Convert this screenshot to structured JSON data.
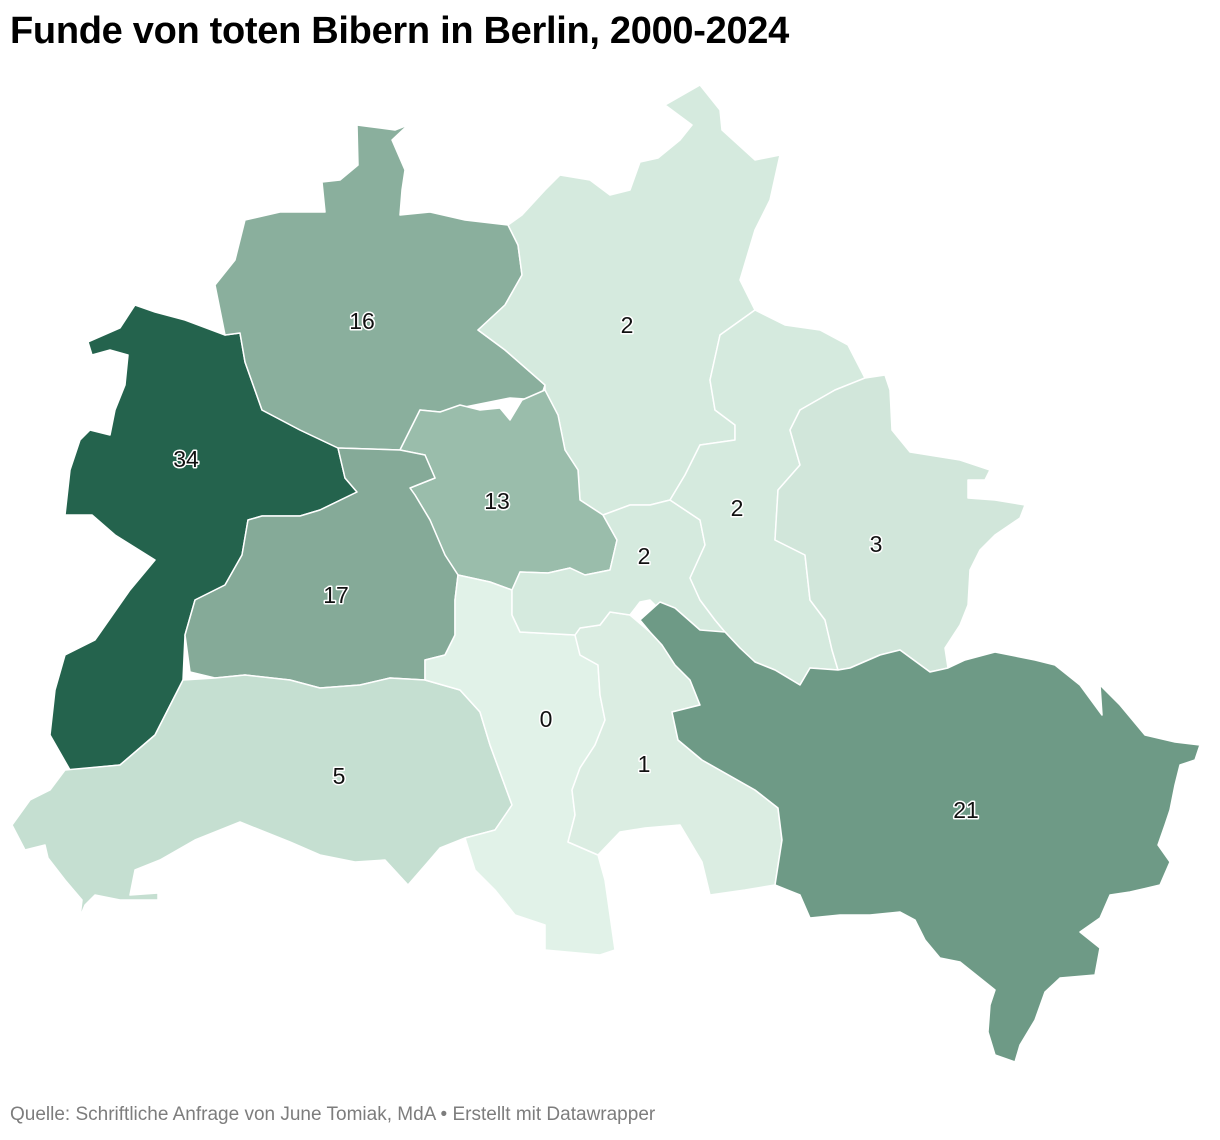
{
  "title": "Funde von toten Bibern in Berlin, 2000-2024",
  "footer": {
    "source": "Quelle: Schriftliche Anfrage von June Tomiak, MdA",
    "separator": "•",
    "credit": "Erstellt mit Datawrapper"
  },
  "map": {
    "regions": [
      {
        "id": "spandau",
        "value": 34,
        "label": "34",
        "color": "#24634d"
      },
      {
        "id": "reinickendorf",
        "value": 16,
        "label": "16",
        "color": "#8aaf9d"
      },
      {
        "id": "pankow",
        "value": 2,
        "label": "2",
        "color": "#d5eade"
      },
      {
        "id": "mitte",
        "value": 13,
        "label": "13",
        "color": "#9abdab"
      },
      {
        "id": "charlottenburg-wilmersdorf",
        "value": 17,
        "label": "17",
        "color": "#85aa98"
      },
      {
        "id": "steglitz-zehlendorf",
        "value": 5,
        "label": "5",
        "color": "#c5dfd1"
      },
      {
        "id": "tempelhof-schoeneberg",
        "value": 0,
        "label": "0",
        "color": "#e1f2e8"
      },
      {
        "id": "neukoelln",
        "value": 1,
        "label": "1",
        "color": "#dbede2"
      },
      {
        "id": "friedrichshain-kreuzberg",
        "value": 2,
        "label": "2",
        "color": "#d5eade"
      },
      {
        "id": "lichtenberg",
        "value": 2,
        "label": "2",
        "color": "#d5eade"
      },
      {
        "id": "marzahn-hellersdorf",
        "value": 3,
        "label": "3",
        "color": "#d1e6da"
      },
      {
        "id": "treptow-koepenick",
        "value": 21,
        "label": "21",
        "color": "#6e9a86"
      }
    ]
  }
}
